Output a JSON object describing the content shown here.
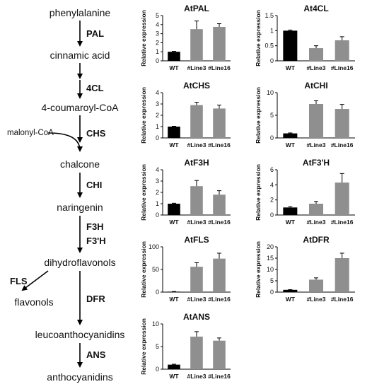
{
  "pathway": {
    "compounds": [
      {
        "id": "phe",
        "label": "phenylalanine"
      },
      {
        "id": "cin",
        "label": "cinnamic acid"
      },
      {
        "id": "cou",
        "label": "4-coumaroyl-CoA"
      },
      {
        "id": "chal",
        "label": "chalcone"
      },
      {
        "id": "nar",
        "label": "naringenin"
      },
      {
        "id": "dhf",
        "label": "dihydroflavonols"
      },
      {
        "id": "flv",
        "label": "flavonols"
      },
      {
        "id": "leu",
        "label": "leucoanthocyanidins"
      },
      {
        "id": "ant",
        "label": "anthocyanidins"
      }
    ],
    "enzymes": [
      {
        "id": "pal",
        "label": "PAL"
      },
      {
        "id": "c4l",
        "label": "4CL"
      },
      {
        "id": "chs",
        "label": "CHS"
      },
      {
        "id": "chi",
        "label": "CHI"
      },
      {
        "id": "f3h",
        "label": "F3H"
      },
      {
        "id": "f3ph",
        "label": "F3'H"
      },
      {
        "id": "fls",
        "label": "FLS"
      },
      {
        "id": "dfr",
        "label": "DFR"
      },
      {
        "id": "ans",
        "label": "ANS"
      }
    ],
    "cosubstrate": "malonyl-CoA"
  },
  "chart_data": [
    {
      "type": "bar",
      "title": "AtPAL",
      "ylabel": "Relative expression",
      "categories": [
        "WT",
        "#Line3",
        "#Line16"
      ],
      "values": [
        1.0,
        3.5,
        3.75
      ],
      "errors": [
        0.05,
        0.9,
        0.35
      ],
      "ylim": [
        0,
        5
      ],
      "yticks": [
        0,
        1,
        2,
        3,
        4,
        5
      ]
    },
    {
      "type": "bar",
      "title": "At4CL",
      "ylabel": "Relative expression",
      "categories": [
        "WT",
        "#Line3",
        "#Line16"
      ],
      "values": [
        1.0,
        0.42,
        0.68
      ],
      "errors": [
        0.02,
        0.08,
        0.12
      ],
      "ylim": [
        0,
        1.5
      ],
      "yticks": [
        0,
        0.5,
        1,
        1.5
      ]
    },
    {
      "type": "bar",
      "title": "AtCHS",
      "ylabel": "Relative expression",
      "categories": [
        "WT",
        "#Line3",
        "#Line16"
      ],
      "values": [
        1.0,
        2.9,
        2.6
      ],
      "errors": [
        0.03,
        0.25,
        0.3
      ],
      "ylim": [
        0,
        4
      ],
      "yticks": [
        0,
        1,
        2,
        3,
        4
      ]
    },
    {
      "type": "bar",
      "title": "AtCHI",
      "ylabel": "Relative expression",
      "categories": [
        "WT",
        "#Line3",
        "#Line16"
      ],
      "values": [
        1.0,
        7.5,
        6.4
      ],
      "errors": [
        0.1,
        0.7,
        1.0
      ],
      "ylim": [
        0,
        10
      ],
      "yticks": [
        0,
        5,
        10
      ]
    },
    {
      "type": "bar",
      "title": "AtF3H",
      "ylabel": "Relative expression",
      "categories": [
        "WT",
        "#Line3",
        "#Line16"
      ],
      "values": [
        1.0,
        2.55,
        1.8
      ],
      "errors": [
        0.04,
        0.5,
        0.35
      ],
      "ylim": [
        0,
        4
      ],
      "yticks": [
        0,
        1,
        2,
        3,
        4
      ]
    },
    {
      "type": "bar",
      "title": "AtF3'H",
      "ylabel": "Relative expression",
      "categories": [
        "WT",
        "#Line3",
        "#Line16"
      ],
      "values": [
        1.0,
        1.5,
        4.3
      ],
      "errors": [
        0.1,
        0.3,
        1.2
      ],
      "ylim": [
        0,
        6
      ],
      "yticks": [
        0,
        2,
        4,
        6
      ]
    },
    {
      "type": "bar",
      "title": "AtFLS",
      "ylabel": "Relative expression",
      "categories": [
        "WT",
        "#Line3",
        "#Line16"
      ],
      "values": [
        1.0,
        56,
        74
      ],
      "errors": [
        0.3,
        9,
        12
      ],
      "ylim": [
        0,
        100
      ],
      "yticks": [
        0,
        50,
        100
      ]
    },
    {
      "type": "bar",
      "title": "AtDFR",
      "ylabel": "Relative expression",
      "categories": [
        "WT",
        "#Line3",
        "#Line16"
      ],
      "values": [
        1.0,
        5.5,
        15.0
      ],
      "errors": [
        0.1,
        0.8,
        2.2
      ],
      "ylim": [
        0,
        20
      ],
      "yticks": [
        0,
        5,
        10,
        15,
        20
      ]
    },
    {
      "type": "bar",
      "title": "AtANS",
      "ylabel": "Relative expression",
      "categories": [
        "WT",
        "#Line3",
        "#Line16"
      ],
      "values": [
        1.0,
        7.2,
        6.3
      ],
      "errors": [
        0.1,
        1.1,
        0.6
      ],
      "ylim": [
        0,
        10
      ],
      "yticks": [
        0,
        5,
        10
      ]
    }
  ],
  "colors": {
    "wt": "#000000",
    "transgenic": "#8f8f8f",
    "axis": "#000000",
    "text": "#111111"
  }
}
